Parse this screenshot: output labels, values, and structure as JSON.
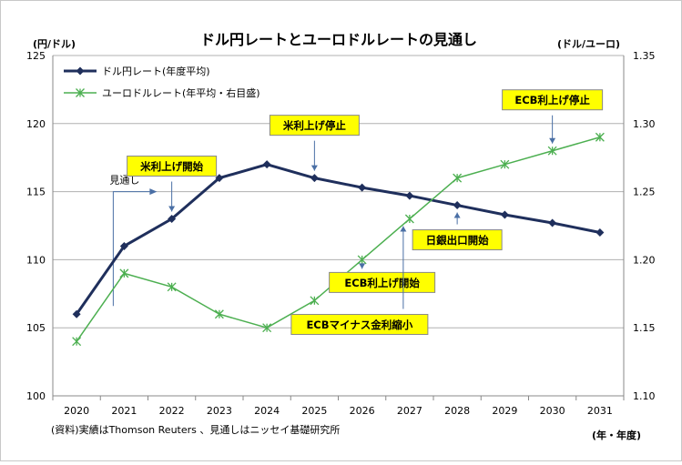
{
  "chart_data": {
    "type": "line",
    "title": "ドル円レートとユーロドルレートの見通し",
    "y_left_unit": "(円/ドル)",
    "y_right_unit": "(ドル/ユーロ)",
    "x_unit": "(年・年度)",
    "source_note": "(資料)実績はThomson Reuters 、見通しはニッセイ基礎研究所",
    "x": [
      "2020",
      "2021",
      "2022",
      "2023",
      "2024",
      "2025",
      "2026",
      "2027",
      "2028",
      "2029",
      "2030",
      "2031"
    ],
    "y_left_range": [
      100,
      125
    ],
    "y_left_ticks": [
      "100",
      "105",
      "110",
      "115",
      "120",
      "125"
    ],
    "y_right_range": [
      1.1,
      1.35
    ],
    "y_right_ticks": [
      "1.10",
      "1.15",
      "1.20",
      "1.25",
      "1.30",
      "1.35"
    ],
    "grid": "horizontal",
    "legend_position": "top-left",
    "series": [
      {
        "name": "ドル円レート(年度平均)",
        "axis": "left",
        "color": "#1f2f5c",
        "marker": "diamond",
        "values": [
          106,
          111,
          113,
          116,
          117,
          116,
          115.3,
          114.7,
          114,
          113.3,
          112.7,
          112
        ]
      },
      {
        "name": "ユーロドルレート(年平均・右目盛)",
        "axis": "right",
        "color": "#4caf50",
        "marker": "asterisk",
        "values": [
          1.14,
          1.19,
          1.18,
          1.16,
          1.15,
          1.17,
          1.2,
          1.23,
          1.26,
          1.27,
          1.28,
          1.29
        ]
      }
    ],
    "forecast_label": "見通し",
    "annotations": [
      {
        "text": "米利上げ開始",
        "x": "2022",
        "y": 113,
        "axis": "left"
      },
      {
        "text": "米利上げ停止",
        "x": "2025",
        "y": 116,
        "axis": "left"
      },
      {
        "text": "ECB利上げ停止",
        "x": "2030",
        "y": 1.28,
        "axis": "right"
      },
      {
        "text": "日銀出口開始",
        "x": "2028",
        "y": 114,
        "axis": "left"
      },
      {
        "text": "ECB利上げ開始",
        "x": "2026",
        "y": 1.2,
        "axis": "right"
      },
      {
        "text": "ECBマイナス金利縮小",
        "x": "2027",
        "y": 1.23,
        "axis": "right"
      }
    ],
    "colors": {
      "annotation_fill": "#ffff00",
      "annotation_arrow": "#4a6fa5",
      "grid": "#b0b0b0"
    }
  }
}
